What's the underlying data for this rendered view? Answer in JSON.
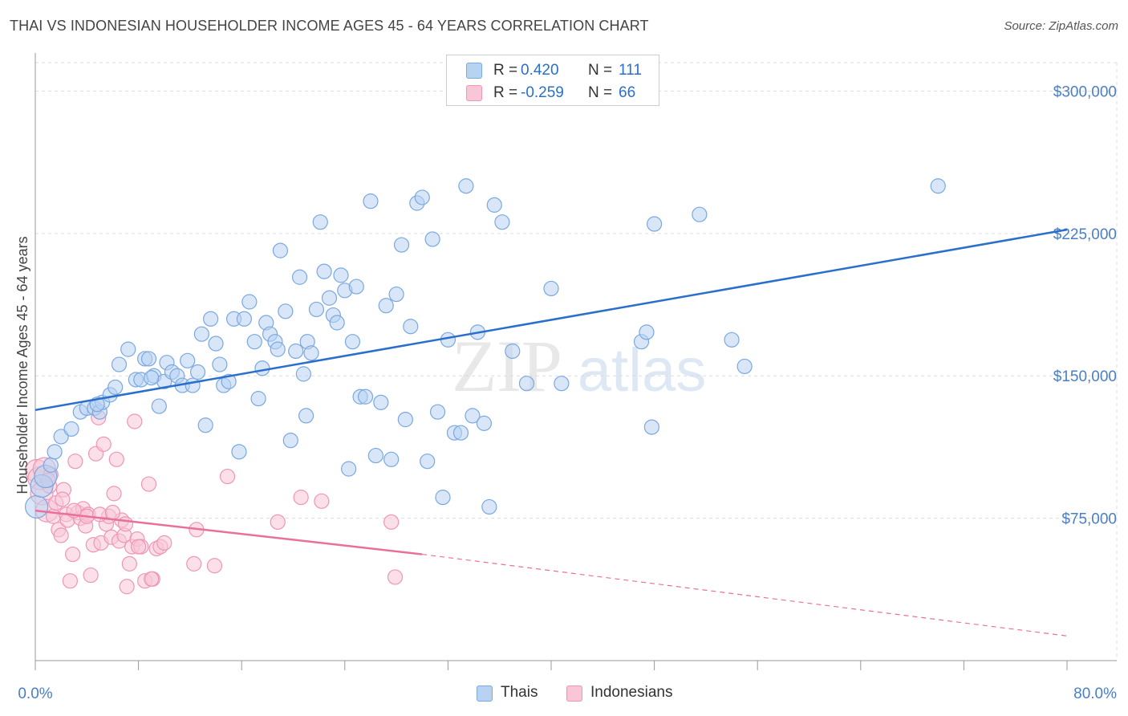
{
  "header": {
    "title": "THAI VS INDONESIAN HOUSEHOLDER INCOME AGES 45 - 64 YEARS CORRELATION CHART",
    "source": "Source: ZipAtlas.com"
  },
  "watermark": {
    "zip": "ZIP",
    "atlas": "atlas"
  },
  "colors": {
    "thai": "#7aa8e0",
    "thai_fill": "#b8d2f2",
    "thai_line": "#2a6fcb",
    "indonesian": "#f095b4",
    "indonesian_fill": "#f8c6d7",
    "indonesian_line": "#e8709a",
    "axis_text": "#4a7ec7",
    "grid": "#dddddd"
  },
  "legend": {
    "rows": [
      {
        "r_label": "R =",
        "r_value": "0.420",
        "n_label": "N =",
        "n_value": "111"
      },
      {
        "r_label": "R =",
        "r_value": "-0.259",
        "n_label": "N =",
        "n_value": "66"
      }
    ]
  },
  "chart_data": {
    "type": "scatter",
    "title": "THAI VS INDONESIAN HOUSEHOLDER INCOME AGES 45 - 64 YEARS CORRELATION CHART",
    "xlabel": "",
    "ylabel": "Householder Income Ages 45 - 64 years",
    "xlim": [
      0,
      80
    ],
    "ylim": [
      0,
      315000
    ],
    "x_tick_labels": [
      "0.0%",
      "80.0%"
    ],
    "y_ticks": [
      75000,
      150000,
      225000,
      300000
    ],
    "y_tick_labels": [
      "$75,000",
      "$150,000",
      "$225,000",
      "$300,000"
    ],
    "grid": true,
    "legend_position": "top-center",
    "series": [
      {
        "name": "Thais",
        "r": 0.42,
        "n": 111,
        "trend": {
          "x": [
            0,
            80
          ],
          "y": [
            132000,
            227000
          ]
        },
        "points": [
          [
            0.1,
            81000
          ],
          [
            0.5,
            92000
          ],
          [
            0.8,
            97000
          ],
          [
            1.2,
            103000
          ],
          [
            1.5,
            110000
          ],
          [
            2.0,
            118000
          ],
          [
            2.8,
            122000
          ],
          [
            3.5,
            131000
          ],
          [
            4.0,
            133000
          ],
          [
            4.6,
            133000
          ],
          [
            5.0,
            131000
          ],
          [
            5.2,
            136000
          ],
          [
            5.8,
            140000
          ],
          [
            6.2,
            144000
          ],
          [
            6.5,
            156000
          ],
          [
            7.2,
            164000
          ],
          [
            7.8,
            148000
          ],
          [
            8.2,
            148000
          ],
          [
            8.5,
            159000
          ],
          [
            8.8,
            159000
          ],
          [
            9.2,
            150000
          ],
          [
            9.6,
            134000
          ],
          [
            10.0,
            147000
          ],
          [
            10.2,
            157000
          ],
          [
            10.6,
            152000
          ],
          [
            11.0,
            150000
          ],
          [
            11.4,
            145000
          ],
          [
            11.8,
            158000
          ],
          [
            12.2,
            145000
          ],
          [
            12.6,
            152000
          ],
          [
            12.9,
            172000
          ],
          [
            13.2,
            124000
          ],
          [
            13.6,
            180000
          ],
          [
            14.0,
            167000
          ],
          [
            14.3,
            156000
          ],
          [
            14.6,
            145000
          ],
          [
            15.0,
            147000
          ],
          [
            15.4,
            180000
          ],
          [
            15.8,
            110000
          ],
          [
            16.2,
            180000
          ],
          [
            16.6,
            189000
          ],
          [
            17.0,
            168000
          ],
          [
            17.3,
            138000
          ],
          [
            17.6,
            154000
          ],
          [
            17.9,
            178000
          ],
          [
            18.2,
            172000
          ],
          [
            18.6,
            168000
          ],
          [
            19.0,
            216000
          ],
          [
            19.4,
            184000
          ],
          [
            19.8,
            116000
          ],
          [
            20.2,
            163000
          ],
          [
            20.5,
            202000
          ],
          [
            20.8,
            151000
          ],
          [
            21.1,
            168000
          ],
          [
            21.4,
            162000
          ],
          [
            21.8,
            185000
          ],
          [
            22.1,
            231000
          ],
          [
            22.4,
            205000
          ],
          [
            22.8,
            191000
          ],
          [
            23.1,
            182000
          ],
          [
            23.4,
            178000
          ],
          [
            23.7,
            203000
          ],
          [
            24.0,
            195000
          ],
          [
            24.3,
            101000
          ],
          [
            24.6,
            168000
          ],
          [
            24.9,
            197000
          ],
          [
            25.2,
            139000
          ],
          [
            25.6,
            139000
          ],
          [
            26.0,
            242000
          ],
          [
            26.4,
            108000
          ],
          [
            26.8,
            136000
          ],
          [
            27.2,
            187000
          ],
          [
            27.6,
            106000
          ],
          [
            28.0,
            193000
          ],
          [
            28.4,
            219000
          ],
          [
            28.7,
            127000
          ],
          [
            29.1,
            176000
          ],
          [
            29.6,
            241000
          ],
          [
            30.0,
            244000
          ],
          [
            30.4,
            105000
          ],
          [
            30.8,
            222000
          ],
          [
            31.2,
            131000
          ],
          [
            31.6,
            86000
          ],
          [
            32.0,
            169000
          ],
          [
            32.5,
            120000
          ],
          [
            33.0,
            120000
          ],
          [
            33.4,
            250000
          ],
          [
            33.9,
            129000
          ],
          [
            34.3,
            173000
          ],
          [
            34.8,
            125000
          ],
          [
            35.2,
            81000
          ],
          [
            35.6,
            240000
          ],
          [
            36.2,
            231000
          ],
          [
            37.0,
            163000
          ],
          [
            38.1,
            146000
          ],
          [
            40.0,
            196000
          ],
          [
            40.8,
            146000
          ],
          [
            47.0,
            168000
          ],
          [
            47.4,
            173000
          ],
          [
            47.8,
            123000
          ],
          [
            48.0,
            230000
          ],
          [
            51.5,
            235000
          ],
          [
            54.0,
            169000
          ],
          [
            55.0,
            155000
          ],
          [
            70.0,
            250000
          ],
          [
            4.8,
            135000
          ],
          [
            9.0,
            149000
          ],
          [
            18.8,
            164000
          ],
          [
            21.0,
            129000
          ]
        ]
      },
      {
        "name": "Indonesians",
        "r": -0.259,
        "n": 66,
        "trend": {
          "x": [
            0,
            30
          ],
          "y": [
            79000,
            56000
          ]
        },
        "trend_dashed": {
          "x": [
            30,
            80
          ],
          "y": [
            56000,
            13000
          ]
        },
        "points": [
          [
            0.1,
            100000
          ],
          [
            0.3,
            96000
          ],
          [
            0.5,
            88000
          ],
          [
            0.7,
            101000
          ],
          [
            0.9,
            79000
          ],
          [
            1.1,
            92000
          ],
          [
            1.2,
            98000
          ],
          [
            1.4,
            76000
          ],
          [
            1.6,
            83000
          ],
          [
            1.8,
            69000
          ],
          [
            2.0,
            66000
          ],
          [
            2.2,
            90000
          ],
          [
            2.4,
            77000
          ],
          [
            2.5,
            74000
          ],
          [
            2.7,
            42000
          ],
          [
            2.9,
            56000
          ],
          [
            3.1,
            105000
          ],
          [
            3.3,
            78000
          ],
          [
            3.5,
            75000
          ],
          [
            3.7,
            80000
          ],
          [
            3.9,
            71000
          ],
          [
            4.1,
            77000
          ],
          [
            4.3,
            45000
          ],
          [
            4.5,
            61000
          ],
          [
            4.7,
            109000
          ],
          [
            4.9,
            128000
          ],
          [
            5.1,
            62000
          ],
          [
            5.3,
            114000
          ],
          [
            5.5,
            72000
          ],
          [
            5.7,
            76000
          ],
          [
            5.9,
            65000
          ],
          [
            6.1,
            88000
          ],
          [
            6.3,
            106000
          ],
          [
            6.5,
            63000
          ],
          [
            6.7,
            74000
          ],
          [
            6.9,
            66000
          ],
          [
            7.1,
            39000
          ],
          [
            7.3,
            51000
          ],
          [
            7.5,
            60000
          ],
          [
            7.7,
            126000
          ],
          [
            7.9,
            64000
          ],
          [
            8.2,
            60000
          ],
          [
            8.5,
            42000
          ],
          [
            8.8,
            93000
          ],
          [
            9.1,
            43000
          ],
          [
            9.4,
            59000
          ],
          [
            9.7,
            60000
          ],
          [
            10.0,
            62000
          ],
          [
            12.5,
            69000
          ],
          [
            12.3,
            51000
          ],
          [
            13.9,
            50000
          ],
          [
            14.9,
            97000
          ],
          [
            18.8,
            73000
          ],
          [
            20.6,
            86000
          ],
          [
            22.2,
            84000
          ],
          [
            27.6,
            73000
          ],
          [
            27.9,
            44000
          ],
          [
            1.0,
            95000
          ],
          [
            2.1,
            85000
          ],
          [
            3.0,
            79000
          ],
          [
            4.0,
            76000
          ],
          [
            5.0,
            77000
          ],
          [
            6.0,
            78000
          ],
          [
            7.0,
            72000
          ],
          [
            8.0,
            60000
          ],
          [
            9.0,
            43000
          ]
        ]
      }
    ]
  },
  "bottom_legend": {
    "items": [
      {
        "label": "Thais"
      },
      {
        "label": "Indonesians"
      }
    ]
  }
}
